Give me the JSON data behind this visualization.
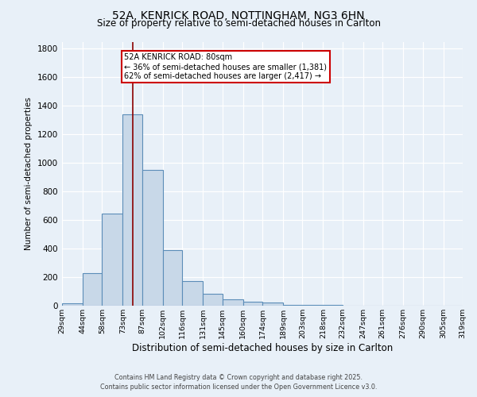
{
  "title_line1": "52A, KENRICK ROAD, NOTTINGHAM, NG3 6HN",
  "title_line2": "Size of property relative to semi-detached houses in Carlton",
  "xlabel": "Distribution of semi-detached houses by size in Carlton",
  "ylabel": "Number of semi-detached properties",
  "bin_labels": [
    "29sqm",
    "44sqm",
    "58sqm",
    "73sqm",
    "87sqm",
    "102sqm",
    "116sqm",
    "131sqm",
    "145sqm",
    "160sqm",
    "174sqm",
    "189sqm",
    "203sqm",
    "218sqm",
    "232sqm",
    "247sqm",
    "261sqm",
    "276sqm",
    "290sqm",
    "305sqm",
    "319sqm"
  ],
  "bin_edges": [
    29,
    44,
    58,
    73,
    87,
    102,
    116,
    131,
    145,
    160,
    174,
    189,
    203,
    218,
    232,
    247,
    261,
    276,
    290,
    305,
    319
  ],
  "bar_heights": [
    15,
    230,
    645,
    1340,
    950,
    390,
    170,
    85,
    47,
    30,
    20,
    8,
    5,
    3,
    0,
    0,
    0,
    0,
    0,
    0
  ],
  "bar_color": "#c8d8e8",
  "bar_edge_color": "#5b8db8",
  "property_size": 80,
  "vline_color": "#8b0000",
  "annotation_text": "52A KENRICK ROAD: 80sqm\n← 36% of semi-detached houses are smaller (1,381)\n62% of semi-detached houses are larger (2,417) →",
  "annotation_box_color": "white",
  "annotation_box_edge_color": "#cc0000",
  "ylim": [
    0,
    1850
  ],
  "yticks": [
    0,
    200,
    400,
    600,
    800,
    1000,
    1200,
    1400,
    1600,
    1800
  ],
  "background_color": "#e8f0f8",
  "grid_color": "white",
  "footer_line1": "Contains HM Land Registry data © Crown copyright and database right 2025.",
  "footer_line2": "Contains public sector information licensed under the Open Government Licence v3.0."
}
